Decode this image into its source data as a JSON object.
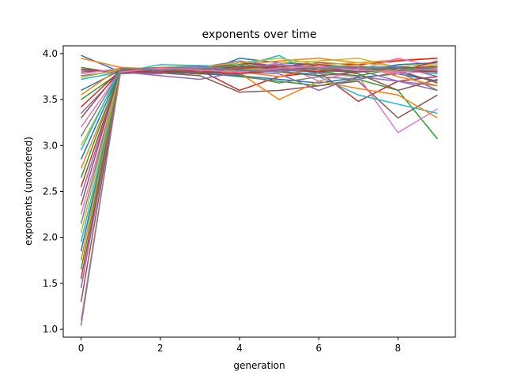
{
  "chart_data": {
    "type": "line",
    "title": "exponents over time",
    "xlabel": "generation",
    "ylabel": "exponents (unordered)",
    "xlim": [
      -0.45,
      9.45
    ],
    "ylim": [
      0.915,
      4.085
    ],
    "xticks": [
      0,
      2,
      4,
      6,
      8
    ],
    "yticks": [
      1.0,
      1.5,
      2.0,
      2.5,
      3.0,
      3.5,
      4.0
    ],
    "grid": false,
    "legend": "none",
    "x": [
      0,
      1,
      2,
      3,
      4,
      5,
      6,
      7,
      8,
      9
    ],
    "colors": [
      "#1f77b4",
      "#ff7f0e",
      "#2ca02c",
      "#d62728",
      "#9467bd",
      "#8c564b",
      "#e377c2",
      "#7f7f7f",
      "#bcbd22",
      "#17becf"
    ],
    "series": [
      {
        "values": [
          3.98,
          3.8,
          3.82,
          3.78,
          3.95,
          3.9,
          3.88,
          3.85,
          3.8,
          3.7
        ]
      },
      {
        "values": [
          3.95,
          3.85,
          3.8,
          3.83,
          3.88,
          3.92,
          3.95,
          3.9,
          3.93,
          3.95
        ]
      },
      {
        "values": [
          3.85,
          3.78,
          3.8,
          3.79,
          3.75,
          3.7,
          3.65,
          3.72,
          3.6,
          3.07
        ]
      },
      {
        "values": [
          3.83,
          3.8,
          3.84,
          3.82,
          3.6,
          3.75,
          3.8,
          3.48,
          3.7,
          3.75
        ]
      },
      {
        "values": [
          3.82,
          3.79,
          3.78,
          3.85,
          3.92,
          3.86,
          3.8,
          3.82,
          3.7,
          3.6
        ]
      },
      {
        "values": [
          3.8,
          3.82,
          3.79,
          3.76,
          3.58,
          3.6,
          3.65,
          3.7,
          3.3,
          3.55
        ]
      },
      {
        "values": [
          3.78,
          3.84,
          3.81,
          3.8,
          3.85,
          3.8,
          3.78,
          3.75,
          3.14,
          3.4
        ]
      },
      {
        "values": [
          3.76,
          3.81,
          3.83,
          3.84,
          3.82,
          3.88,
          3.86,
          3.84,
          3.8,
          3.85
        ]
      },
      {
        "values": [
          3.74,
          3.83,
          3.85,
          3.87,
          3.8,
          3.9,
          3.92,
          3.95,
          3.85,
          3.9
        ]
      },
      {
        "values": [
          3.72,
          3.8,
          3.88,
          3.87,
          3.86,
          3.98,
          3.75,
          3.55,
          3.45,
          3.35
        ]
      },
      {
        "values": [
          3.6,
          3.82,
          3.8,
          3.78,
          3.76,
          3.72,
          3.68,
          3.74,
          3.78,
          3.7
        ]
      },
      {
        "values": [
          3.55,
          3.85,
          3.83,
          3.82,
          3.79,
          3.5,
          3.7,
          3.62,
          3.55,
          3.3
        ]
      },
      {
        "values": [
          3.5,
          3.8,
          3.82,
          3.84,
          3.88,
          3.85,
          3.82,
          3.8,
          3.84,
          3.8
        ]
      },
      {
        "values": [
          3.42,
          3.82,
          3.85,
          3.83,
          3.9,
          3.86,
          3.9,
          3.88,
          3.92,
          3.95
        ]
      },
      {
        "values": [
          3.35,
          3.8,
          3.76,
          3.72,
          3.8,
          3.78,
          3.6,
          3.75,
          3.7,
          3.65
        ]
      },
      {
        "values": [
          3.3,
          3.83,
          3.8,
          3.78,
          3.85,
          3.82,
          3.85,
          3.78,
          3.6,
          3.72
        ]
      },
      {
        "values": [
          3.2,
          3.81,
          3.84,
          3.86,
          3.82,
          3.9,
          3.7,
          3.82,
          3.95,
          3.85
        ]
      },
      {
        "values": [
          3.1,
          3.82,
          3.79,
          3.8,
          3.77,
          3.68,
          3.75,
          3.72,
          3.8,
          3.6
        ]
      },
      {
        "values": [
          3.0,
          3.8,
          3.83,
          3.85,
          3.9,
          3.95,
          3.88,
          3.9,
          3.86,
          3.88
        ]
      },
      {
        "values": [
          2.95,
          3.84,
          3.81,
          3.82,
          3.84,
          3.8,
          3.78,
          3.85,
          3.82,
          3.78
        ]
      },
      {
        "values": [
          2.85,
          3.82,
          3.8,
          3.78,
          3.83,
          3.86,
          3.82,
          3.8,
          3.88,
          3.9
        ]
      },
      {
        "values": [
          2.75,
          3.8,
          3.85,
          3.83,
          3.8,
          3.75,
          3.85,
          3.88,
          3.75,
          3.65
        ]
      },
      {
        "values": [
          2.65,
          3.83,
          3.82,
          3.84,
          3.86,
          3.83,
          3.8,
          3.76,
          3.84,
          3.8
        ]
      },
      {
        "values": [
          2.55,
          3.81,
          3.84,
          3.8,
          3.78,
          3.82,
          3.88,
          3.84,
          3.8,
          3.92
        ]
      },
      {
        "values": [
          2.45,
          3.82,
          3.8,
          3.82,
          3.85,
          3.88,
          3.84,
          3.82,
          3.86,
          3.75
        ]
      },
      {
        "values": [
          2.35,
          3.84,
          3.82,
          3.78,
          3.82,
          3.8,
          3.76,
          3.8,
          3.82,
          3.68
        ]
      },
      {
        "values": [
          2.25,
          3.8,
          3.83,
          3.85,
          3.8,
          3.84,
          3.82,
          3.86,
          3.78,
          3.82
        ]
      },
      {
        "values": [
          2.15,
          3.82,
          3.81,
          3.83,
          3.84,
          3.82,
          3.8,
          3.84,
          3.84,
          3.86
        ]
      },
      {
        "values": [
          2.05,
          3.83,
          3.84,
          3.81,
          3.82,
          3.86,
          3.84,
          3.82,
          3.82,
          3.84
        ]
      },
      {
        "values": [
          1.95,
          3.81,
          3.8,
          3.84,
          3.86,
          3.84,
          3.86,
          3.86,
          3.85,
          3.8
        ]
      },
      {
        "values": [
          1.85,
          3.8,
          3.82,
          3.82,
          3.8,
          3.82,
          3.84,
          3.8,
          3.86,
          3.82
        ]
      },
      {
        "values": [
          1.75,
          3.84,
          3.84,
          3.8,
          3.84,
          3.86,
          3.82,
          3.84,
          3.8,
          3.86
        ]
      },
      {
        "values": [
          1.65,
          3.82,
          3.82,
          3.84,
          3.82,
          3.8,
          3.86,
          3.82,
          3.84,
          3.84
        ]
      },
      {
        "values": [
          1.55,
          3.8,
          3.8,
          3.82,
          3.86,
          3.84,
          3.8,
          3.86,
          3.82,
          3.8
        ]
      },
      {
        "values": [
          1.45,
          3.83,
          3.84,
          3.86,
          3.82,
          3.82,
          3.84,
          3.84,
          3.86,
          3.82
        ]
      },
      {
        "values": [
          1.3,
          3.82,
          3.82,
          3.8,
          3.84,
          3.86,
          3.82,
          3.8,
          3.84,
          3.86
        ]
      },
      {
        "values": [
          1.1,
          3.8,
          3.84,
          3.82,
          3.8,
          3.84,
          3.86,
          3.82,
          3.8,
          3.84
        ]
      },
      {
        "values": [
          1.04,
          3.84,
          3.82,
          3.84,
          3.82,
          3.8,
          3.84,
          3.86,
          3.82,
          3.82
        ]
      }
    ]
  }
}
